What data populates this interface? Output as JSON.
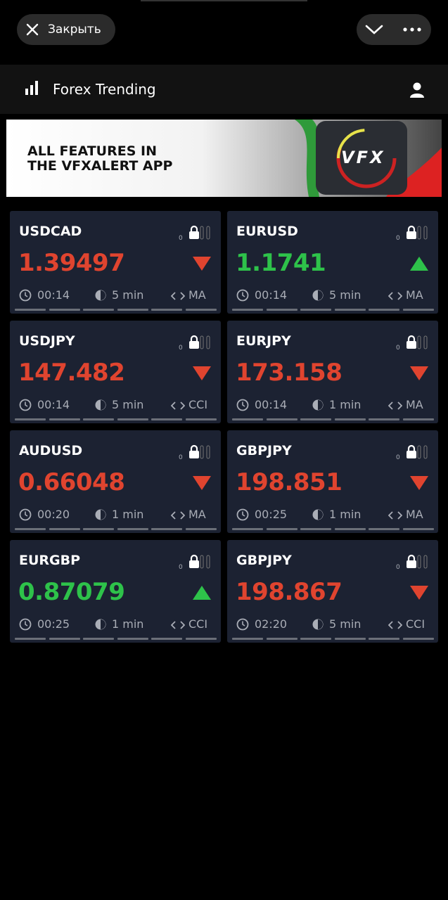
{
  "header": {
    "close_label": "Закрыть",
    "title": "Forex Trending"
  },
  "banner": {
    "lines": [
      "ALL FEATURES IN",
      "THE VFXALERT APP"
    ],
    "logo": "VFX"
  },
  "cards": [
    {
      "pair": "USDCAD",
      "lock_count": "0",
      "price": "1.39497",
      "direction": "down",
      "time": "00:14",
      "period": "5 min",
      "indicator": "MA"
    },
    {
      "pair": "EURUSD",
      "lock_count": "0",
      "price": "1.1741",
      "direction": "up",
      "time": "00:14",
      "period": "5 min",
      "indicator": "MA"
    },
    {
      "pair": "USDJPY",
      "lock_count": "0",
      "price": "147.482",
      "direction": "down",
      "time": "00:14",
      "period": "5 min",
      "indicator": "CCI"
    },
    {
      "pair": "EURJPY",
      "lock_count": "0",
      "price": "173.158",
      "direction": "down",
      "time": "00:14",
      "period": "1 min",
      "indicator": "MA"
    },
    {
      "pair": "AUDUSD",
      "lock_count": "0",
      "price": "0.66048",
      "direction": "down",
      "time": "00:20",
      "period": "1 min",
      "indicator": "MA"
    },
    {
      "pair": "GBPJPY",
      "lock_count": "0",
      "price": "198.851",
      "direction": "down",
      "time": "00:25",
      "period": "1 min",
      "indicator": "MA"
    },
    {
      "pair": "EURGBP",
      "lock_count": "0",
      "price": "0.87079",
      "direction": "up",
      "time": "00:25",
      "period": "1 min",
      "indicator": "CCI"
    },
    {
      "pair": "GBPJPY",
      "lock_count": "0",
      "price": "198.867",
      "direction": "down",
      "time": "02:20",
      "period": "5 min",
      "indicator": "CCI"
    }
  ]
}
